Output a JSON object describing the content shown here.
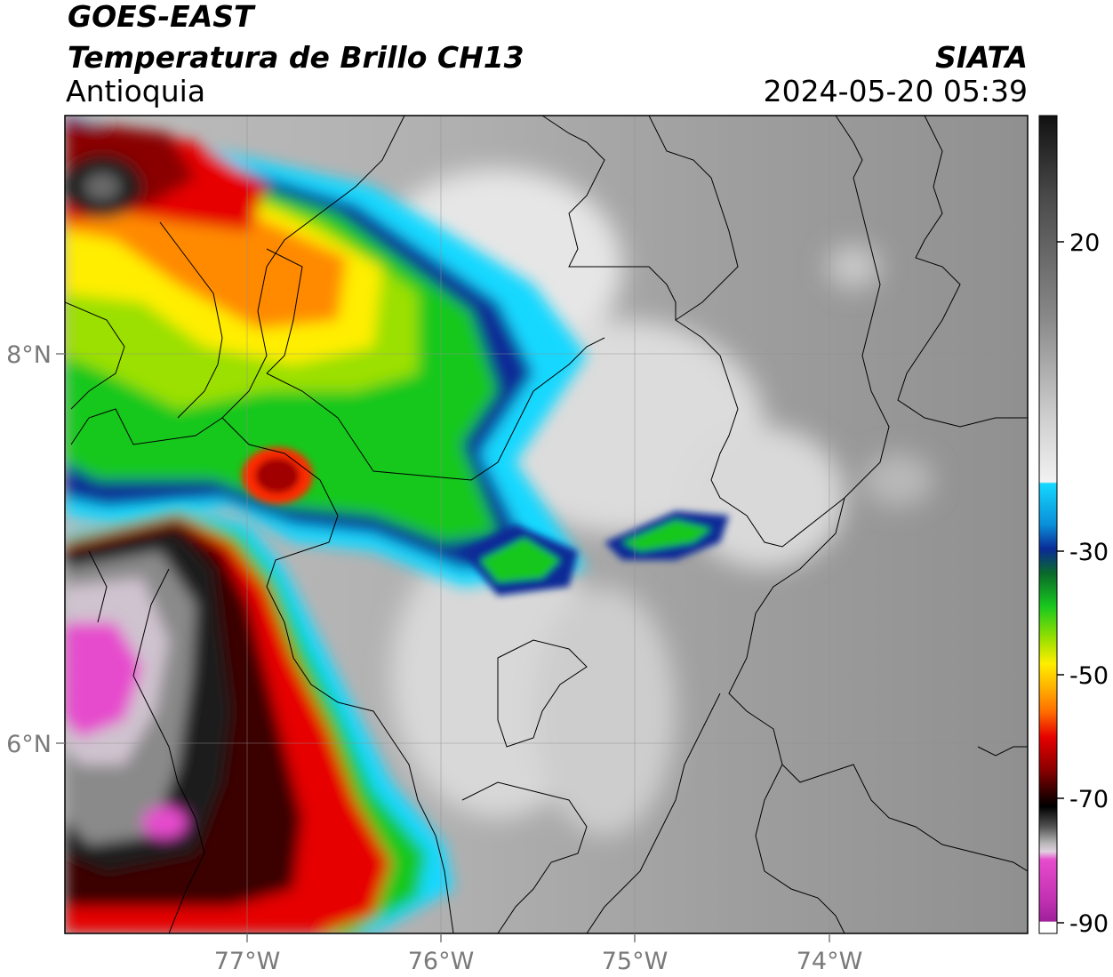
{
  "header": {
    "satellite": "GOES-EAST",
    "product": "Temperatura de Brillo CH13",
    "region": "Antioquia",
    "organization": "SIATA",
    "timestamp": "2024-05-20 05:39"
  },
  "axes": {
    "longitude_ticks": [
      "77°W",
      "76°W",
      "75°W",
      "74°W"
    ],
    "latitude_ticks": [
      "8°N",
      "6°N"
    ]
  },
  "colorbar": {
    "tick_labels": [
      "20",
      "-30",
      "-50",
      "-70",
      "-90"
    ],
    "colors": {
      "warm_gray_top": "#1a1a1a",
      "light_gray": "#e8e8e8",
      "cyan": "#14d8ff",
      "blue": "#0a2a96",
      "green": "#18c81e",
      "yellow": "#ffee00",
      "orange": "#ff8a00",
      "red": "#e60000",
      "dark_red": "#5a0000",
      "black": "#000000",
      "pink": "#e64ccd",
      "purple": "#a0209a"
    }
  }
}
